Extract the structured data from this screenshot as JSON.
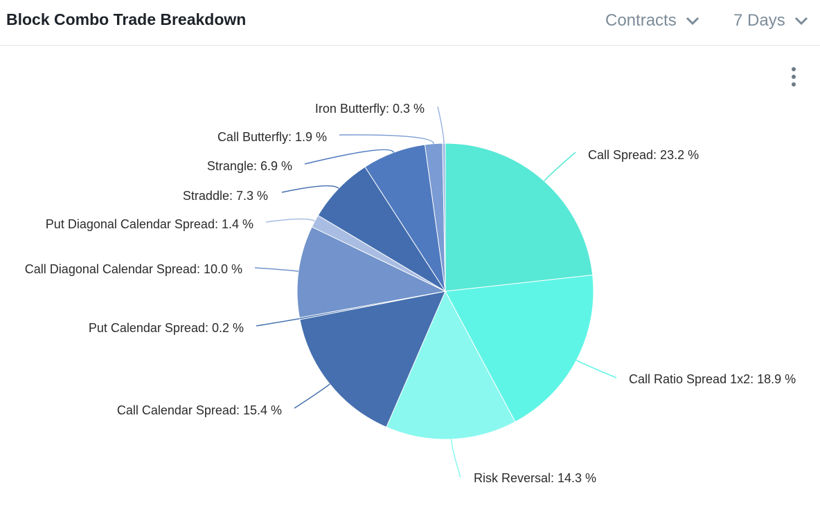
{
  "header": {
    "title": "Block Combo Trade Breakdown",
    "dropdowns": [
      "Contracts",
      "7 Days"
    ]
  },
  "chart_data": {
    "type": "pie",
    "values": [
      23.2,
      18.9,
      14.3,
      15.4,
      0.2,
      10.0,
      1.4,
      7.3,
      6.9,
      1.9,
      0.3
    ],
    "value_labels": [
      "Call Spread: 23.2 %",
      "Call Ratio Spread 1x2: 18.9 %",
      "Risk Reversal: 14.3 %",
      "Call Calendar Spread: 15.4 %",
      "Put Calendar Spread: 0.2 %",
      "Call Diagonal Calendar Spread: 10.0 %",
      "Put Diagonal Calendar Spread: 1.4 %",
      "Straddle: 7.3 %",
      "Strangle: 6.9 %",
      "Call Butterfly: 1.9 %",
      "Iron Butterfly: 0.3 %"
    ],
    "colors": [
      "#57e8d6",
      "#5ff5e6",
      "#8af8ef",
      "#456fae",
      "#4a74b4",
      "#7293cb",
      "#a9bde3",
      "#436dae",
      "#4f7abf",
      "#7a9bd3",
      "#9db6e2"
    ]
  }
}
